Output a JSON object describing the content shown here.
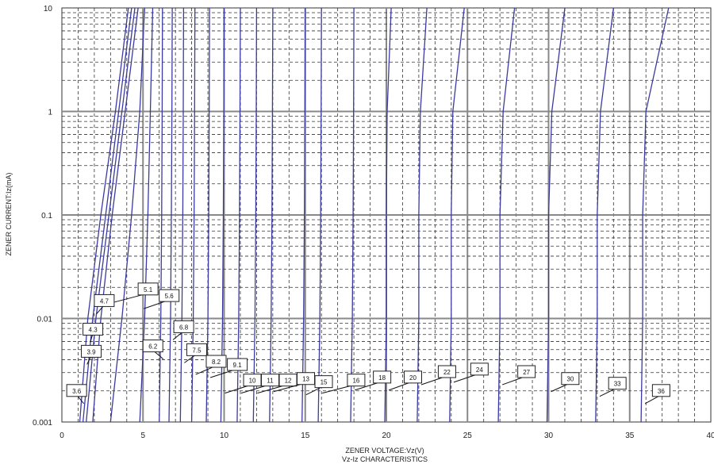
{
  "chart_data": {
    "type": "line",
    "title": "",
    "caption": "Vz-Iz CHARACTERISTICS",
    "xlabel": "ZENER VOLTAGE:Vz(V)",
    "ylabel": "ZENER CURRENT:Iz(mA)",
    "xlim": [
      0,
      40
    ],
    "ylim": [
      0.001,
      10
    ],
    "yscale": "log",
    "grid": true,
    "x_ticks": [
      "0",
      "5",
      "10",
      "15",
      "20",
      "25",
      "30",
      "35",
      "40"
    ],
    "y_ticks": [
      "0.001",
      "0.01",
      "0.1",
      "1",
      "10"
    ],
    "colors": {
      "curve": "#3a3aa0",
      "grid": "#333333",
      "major_grid": "#888888"
    },
    "series": [
      {
        "name": "3.6",
        "points": [
          [
            1.1,
            0.001
          ],
          [
            1.6,
            0.01
          ],
          [
            2.4,
            0.1
          ],
          [
            3.3,
            1
          ],
          [
            4.1,
            10
          ]
        ]
      },
      {
        "name": "3.9",
        "points": [
          [
            1.3,
            0.001
          ],
          [
            1.9,
            0.01
          ],
          [
            2.7,
            0.1
          ],
          [
            3.5,
            1
          ],
          [
            4.3,
            10
          ]
        ]
      },
      {
        "name": "4.3",
        "points": [
          [
            1.5,
            0.001
          ],
          [
            2.1,
            0.01
          ],
          [
            2.9,
            0.1
          ],
          [
            3.7,
            1
          ],
          [
            4.5,
            10
          ]
        ]
      },
      {
        "name": "4.7",
        "points": [
          [
            1.9,
            0.001
          ],
          [
            2.4,
            0.01
          ],
          [
            3.1,
            0.1
          ],
          [
            3.9,
            1
          ],
          [
            4.7,
            10
          ]
        ]
      },
      {
        "name": "5.1",
        "points": [
          [
            3.0,
            0.001
          ],
          [
            3.7,
            0.01
          ],
          [
            4.3,
            0.1
          ],
          [
            4.8,
            1
          ],
          [
            5.1,
            10
          ]
        ]
      },
      {
        "name": "5.6",
        "points": [
          [
            4.8,
            0.001
          ],
          [
            5.1,
            0.01
          ],
          [
            5.3,
            0.1
          ],
          [
            5.45,
            1
          ],
          [
            5.6,
            10
          ]
        ]
      },
      {
        "name": "6.2",
        "points": [
          [
            6.0,
            0.001
          ],
          [
            6.1,
            0.01
          ],
          [
            6.15,
            0.1
          ],
          [
            6.18,
            1
          ],
          [
            6.2,
            10
          ]
        ]
      },
      {
        "name": "6.8",
        "points": [
          [
            6.6,
            0.001
          ],
          [
            6.7,
            0.01
          ],
          [
            6.75,
            0.1
          ],
          [
            6.78,
            1
          ],
          [
            6.8,
            10
          ]
        ]
      },
      {
        "name": "7.5",
        "points": [
          [
            7.3,
            0.001
          ],
          [
            7.4,
            0.01
          ],
          [
            7.45,
            0.1
          ],
          [
            7.48,
            1
          ],
          [
            7.5,
            10
          ]
        ]
      },
      {
        "name": "8.2",
        "points": [
          [
            8.0,
            0.001
          ],
          [
            8.1,
            0.01
          ],
          [
            8.15,
            0.1
          ],
          [
            8.18,
            1
          ],
          [
            8.2,
            10
          ]
        ]
      },
      {
        "name": "9.1",
        "points": [
          [
            8.9,
            0.001
          ],
          [
            9.0,
            0.01
          ],
          [
            9.05,
            0.1
          ],
          [
            9.08,
            1
          ],
          [
            9.1,
            10
          ]
        ]
      },
      {
        "name": "10",
        "points": [
          [
            9.8,
            0.001
          ],
          [
            9.9,
            0.01
          ],
          [
            9.95,
            0.1
          ],
          [
            9.98,
            1
          ],
          [
            10.0,
            10
          ]
        ]
      },
      {
        "name": "11",
        "points": [
          [
            10.8,
            0.001
          ],
          [
            10.9,
            0.01
          ],
          [
            10.95,
            0.1
          ],
          [
            10.98,
            1
          ],
          [
            11.0,
            10
          ]
        ]
      },
      {
        "name": "12",
        "points": [
          [
            11.8,
            0.001
          ],
          [
            11.9,
            0.01
          ],
          [
            11.95,
            0.1
          ],
          [
            11.98,
            1
          ],
          [
            12.0,
            10
          ]
        ]
      },
      {
        "name": "13",
        "points": [
          [
            12.8,
            0.001
          ],
          [
            12.9,
            0.01
          ],
          [
            12.95,
            0.1
          ],
          [
            12.98,
            1
          ],
          [
            13.0,
            10
          ]
        ]
      },
      {
        "name": "15",
        "points": [
          [
            14.8,
            0.001
          ],
          [
            14.9,
            0.01
          ],
          [
            14.95,
            0.1
          ],
          [
            14.98,
            1
          ],
          [
            15.0,
            10
          ]
        ]
      },
      {
        "name": "16",
        "points": [
          [
            15.8,
            0.001
          ],
          [
            15.9,
            0.01
          ],
          [
            15.95,
            0.1
          ],
          [
            15.98,
            1
          ],
          [
            16.0,
            10
          ]
        ]
      },
      {
        "name": "18",
        "points": [
          [
            17.8,
            0.001
          ],
          [
            17.9,
            0.01
          ],
          [
            17.95,
            0.1
          ],
          [
            17.98,
            1
          ],
          [
            18.0,
            10
          ]
        ]
      },
      {
        "name": "20",
        "points": [
          [
            19.9,
            0.001
          ],
          [
            20.0,
            0.01
          ],
          [
            20.0,
            0.1
          ],
          [
            20.05,
            1
          ],
          [
            20.3,
            10
          ]
        ]
      },
      {
        "name": "22",
        "points": [
          [
            21.9,
            0.001
          ],
          [
            22.0,
            0.01
          ],
          [
            22.0,
            0.1
          ],
          [
            22.1,
            1
          ],
          [
            22.5,
            10
          ]
        ]
      },
      {
        "name": "24",
        "points": [
          [
            23.9,
            0.001
          ],
          [
            24.0,
            0.01
          ],
          [
            24.0,
            0.1
          ],
          [
            24.1,
            1
          ],
          [
            24.8,
            10
          ]
        ]
      },
      {
        "name": "27",
        "points": [
          [
            26.9,
            0.001
          ],
          [
            27.0,
            0.01
          ],
          [
            27.0,
            0.1
          ],
          [
            27.2,
            1
          ],
          [
            27.9,
            10
          ]
        ]
      },
      {
        "name": "30",
        "points": [
          [
            29.9,
            0.001
          ],
          [
            30.0,
            0.01
          ],
          [
            30.0,
            0.1
          ],
          [
            30.2,
            1
          ],
          [
            31.0,
            10
          ]
        ]
      },
      {
        "name": "33",
        "points": [
          [
            32.9,
            0.001
          ],
          [
            33.0,
            0.01
          ],
          [
            33.0,
            0.1
          ],
          [
            33.2,
            1
          ],
          [
            34.0,
            10
          ]
        ]
      },
      {
        "name": "36",
        "points": [
          [
            35.7,
            0.001
          ],
          [
            35.8,
            0.01
          ],
          [
            35.8,
            0.1
          ],
          [
            36.0,
            1
          ],
          [
            37.4,
            10
          ]
        ]
      }
    ]
  }
}
